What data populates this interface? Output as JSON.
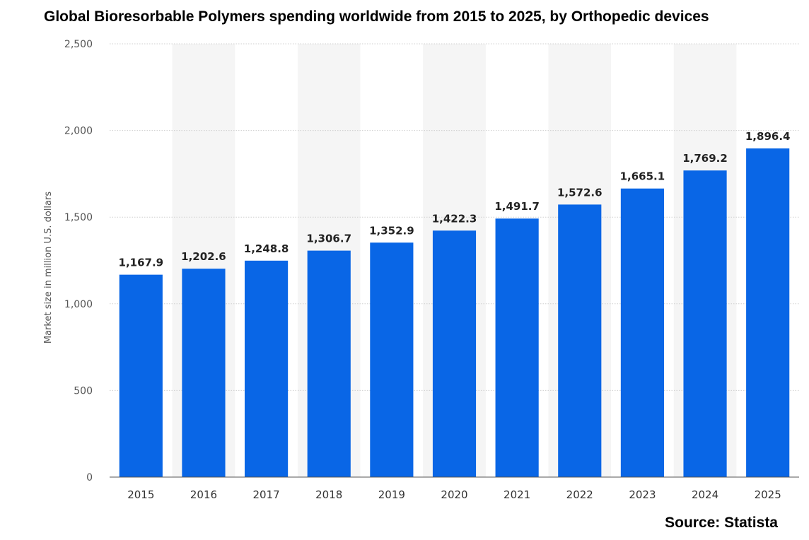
{
  "chart_data": {
    "type": "bar",
    "title": "Global Bioresorbable Polymers spending worldwide from 2015 to 2025, by Orthopedic devices",
    "ylabel": "Market size in million U.S. dollars",
    "xlabel": "",
    "categories": [
      "2015",
      "2016",
      "2017",
      "2018",
      "2019",
      "2020",
      "2021",
      "2022",
      "2023",
      "2024",
      "2025"
    ],
    "values": [
      1167.9,
      1202.6,
      1248.8,
      1306.7,
      1352.9,
      1422.3,
      1491.7,
      1572.6,
      1665.1,
      1769.2,
      1896.4
    ],
    "data_labels": [
      "1,167.9",
      "1,202.6",
      "1,248.8",
      "1,306.7",
      "1,352.9",
      "1,422.3",
      "1,491.7",
      "1,572.6",
      "1,665.1",
      "1,769.2",
      "1,896.4"
    ],
    "ylim": [
      0,
      2500
    ],
    "yticks": [
      0,
      500,
      1000,
      1500,
      2000,
      2500
    ],
    "ytick_labels": [
      "0",
      "500",
      "1,000",
      "1,500",
      "2,000",
      "2,500"
    ],
    "grid": true,
    "bar_color": "#0966e6",
    "source": "Source: Statista"
  }
}
